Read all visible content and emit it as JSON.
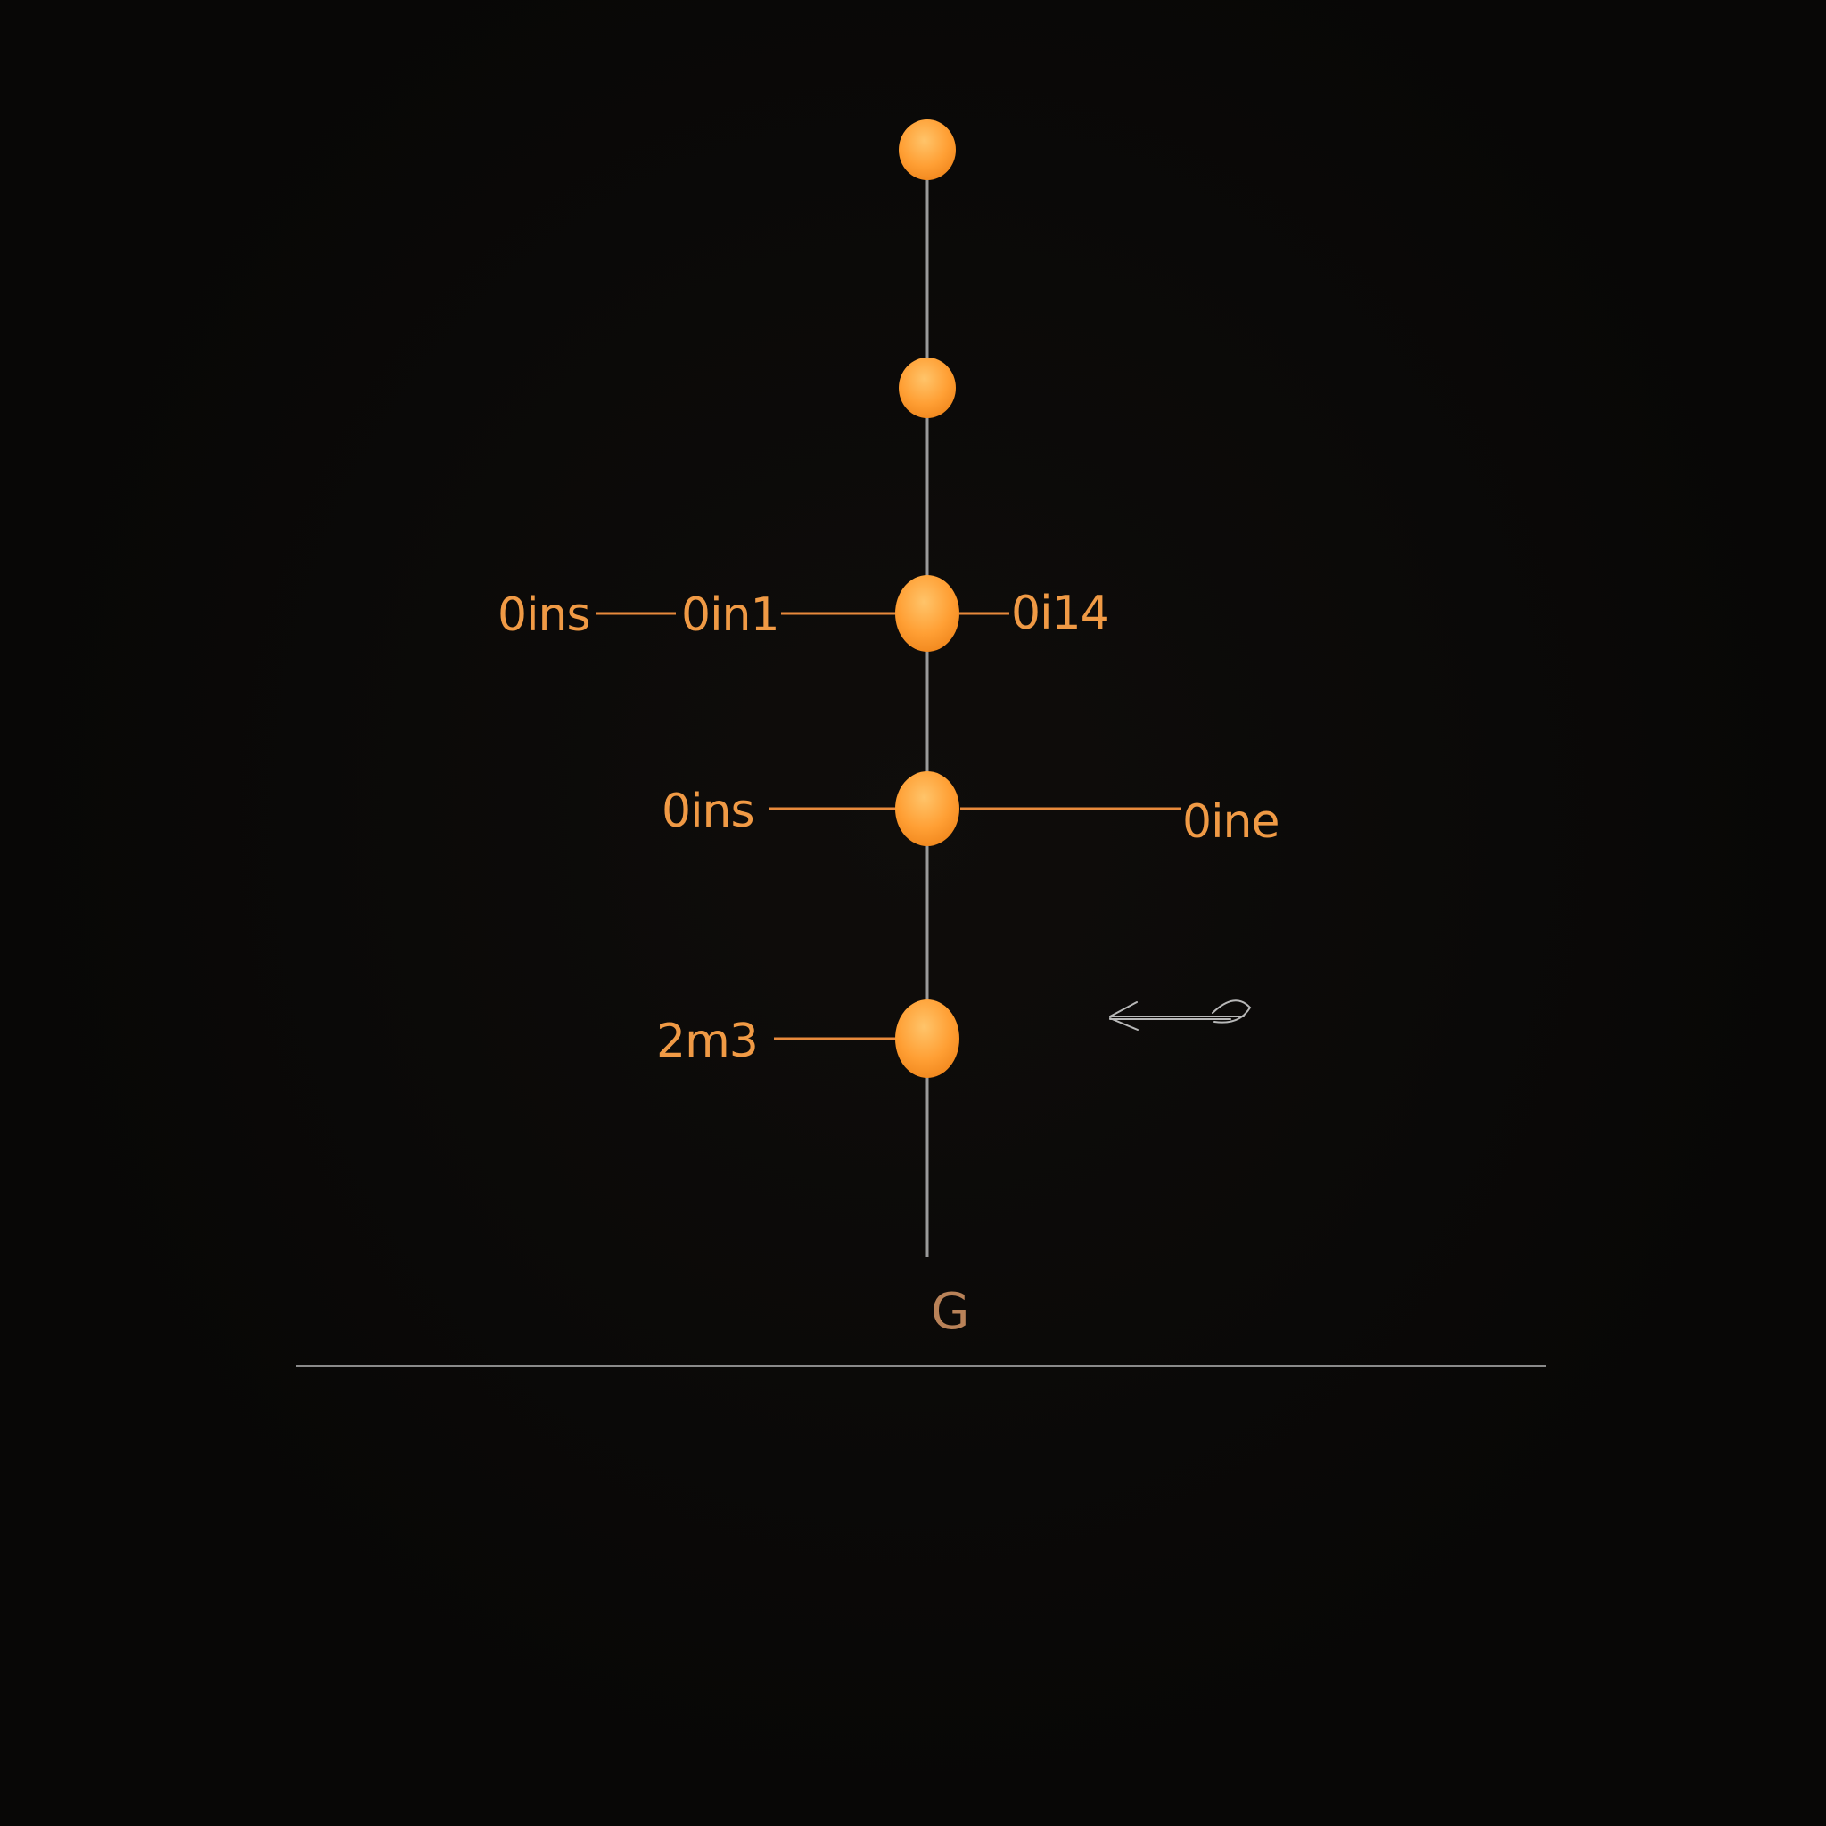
{
  "labels": {
    "row3_far_left": "0ins",
    "row3_left": "0in1",
    "row3_right": "0i14",
    "row4_left": "0ins",
    "row4_right": "0ine",
    "row5_left": "2m3"
  },
  "footer_letter": "G",
  "colors": {
    "background": "#080706",
    "node": "#ff9a2e",
    "node_highlight": "#ffc46a",
    "connector": "#e88a3c",
    "spine": "#9a9a9a",
    "label": "#f09a45",
    "baseline": "#8a8a8a"
  },
  "icons": {
    "arrow": "left-arrow-icon"
  }
}
